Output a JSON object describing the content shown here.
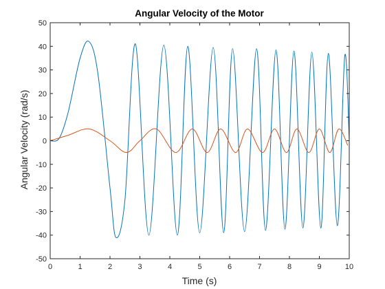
{
  "chart_data": {
    "type": "line",
    "title": "Angular Velocity of the Motor",
    "xlabel": "Time (s)",
    "ylabel": "Angular Velocity (rad/s)",
    "xlim": [
      0,
      10
    ],
    "ylim": [
      -50,
      50
    ],
    "xticks": [
      0,
      1,
      2,
      3,
      4,
      5,
      6,
      7,
      8,
      9,
      10
    ],
    "yticks": [
      -50,
      -40,
      -30,
      -20,
      -10,
      0,
      10,
      20,
      30,
      40,
      50
    ],
    "grid": false,
    "legend": "none",
    "series": [
      {
        "color": "#0072BD",
        "description_points": [
          [
            0.0,
            0
          ],
          [
            0.3,
            1
          ],
          [
            0.6,
            12
          ],
          [
            1.0,
            35
          ],
          [
            1.3,
            42
          ],
          [
            1.6,
            28
          ],
          [
            2.0,
            -20
          ],
          [
            2.2,
            -41
          ],
          [
            2.5,
            -25
          ],
          [
            2.85,
            41
          ],
          [
            3.3,
            -40
          ],
          [
            3.8,
            40.5
          ],
          [
            4.25,
            -40
          ],
          [
            4.6,
            40
          ],
          [
            5.0,
            -39
          ],
          [
            5.45,
            39.5
          ],
          [
            5.8,
            -39
          ],
          [
            6.1,
            39
          ],
          [
            6.5,
            -38.5
          ],
          [
            6.9,
            39
          ],
          [
            7.2,
            -38
          ],
          [
            7.55,
            38.5
          ],
          [
            7.85,
            -37.5
          ],
          [
            8.15,
            38
          ],
          [
            8.45,
            -37
          ],
          [
            8.75,
            37.5
          ],
          [
            9.05,
            -37
          ],
          [
            9.3,
            37
          ],
          [
            9.6,
            -36
          ],
          [
            9.85,
            36
          ],
          [
            10.0,
            0
          ]
        ]
      },
      {
        "color": "#D95319",
        "description_points": [
          [
            0.0,
            0
          ],
          [
            0.6,
            2.3
          ],
          [
            1.3,
            5
          ],
          [
            2.0,
            0
          ],
          [
            2.55,
            -5
          ],
          [
            3.0,
            0
          ],
          [
            3.55,
            5
          ],
          [
            4.2,
            -5
          ],
          [
            4.75,
            5
          ],
          [
            5.25,
            -5
          ],
          [
            5.7,
            5
          ],
          [
            6.2,
            -5
          ],
          [
            6.6,
            5
          ],
          [
            7.1,
            -5
          ],
          [
            7.5,
            5
          ],
          [
            7.9,
            -5
          ],
          [
            8.25,
            5
          ],
          [
            8.65,
            -5
          ],
          [
            9.0,
            5
          ],
          [
            9.35,
            -5
          ],
          [
            9.65,
            5
          ],
          [
            9.95,
            -2
          ]
        ]
      }
    ]
  }
}
